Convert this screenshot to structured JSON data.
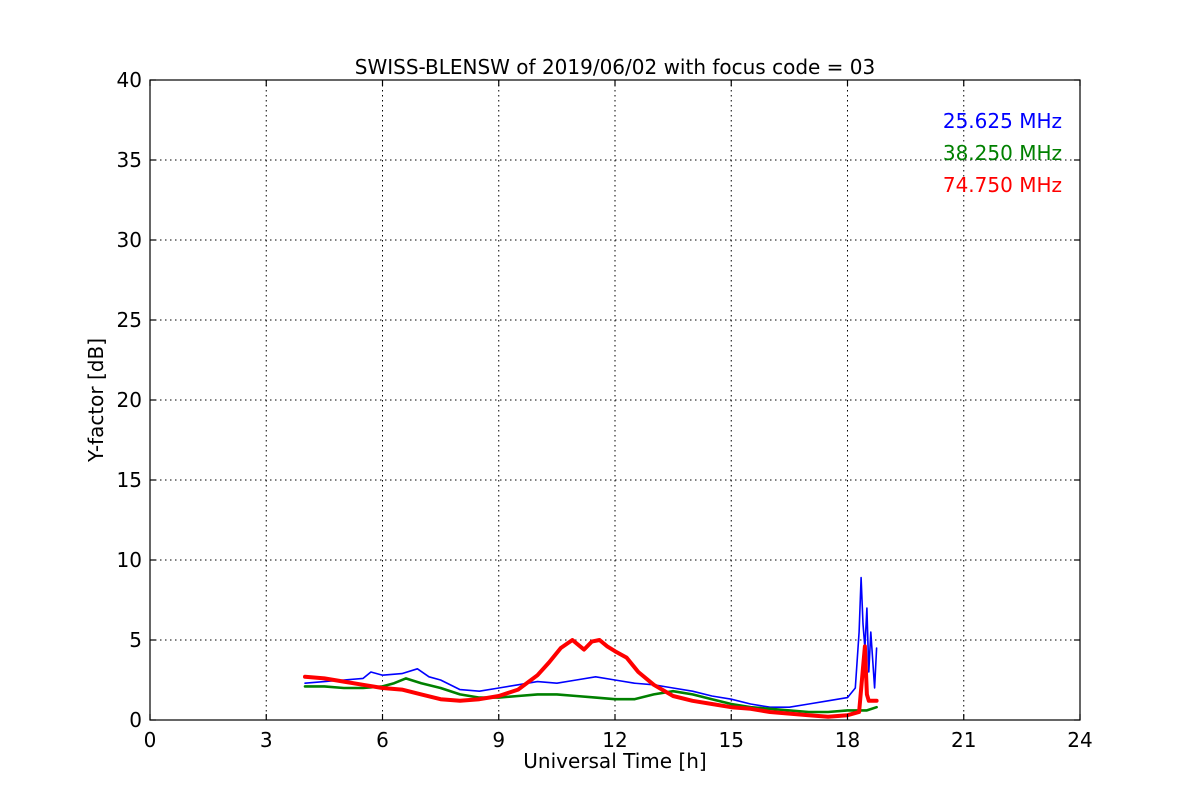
{
  "chart_data": {
    "type": "line",
    "title": "SWISS-BLENSW of 2019/06/02 with focus code = 03",
    "xlabel": "Universal Time [h]",
    "ylabel": "Y-factor [dB]",
    "xlim": [
      0,
      24
    ],
    "ylim": [
      0,
      40
    ],
    "xticks": [
      0,
      3,
      6,
      9,
      12,
      15,
      18,
      21,
      24
    ],
    "yticks": [
      0,
      5,
      10,
      15,
      20,
      25,
      30,
      35,
      40
    ],
    "xtick_labels": [
      "0",
      "3",
      "6",
      "9",
      "12",
      "15",
      "18",
      "21",
      "24"
    ],
    "ytick_labels": [
      "0",
      "5",
      "10",
      "15",
      "20",
      "25",
      "30",
      "35",
      "40"
    ],
    "grid": true,
    "legend_position": "top-right",
    "series": [
      {
        "name": "25.625 MHz",
        "color": "#0000ff",
        "x": [
          4.0,
          4.5,
          5.0,
          5.5,
          5.7,
          6.0,
          6.5,
          6.9,
          7.2,
          7.5,
          8.0,
          8.5,
          9.0,
          9.5,
          10.0,
          10.5,
          11.0,
          11.5,
          12.0,
          12.5,
          13.0,
          13.5,
          14.0,
          14.5,
          15.0,
          15.5,
          16.0,
          16.5,
          17.0,
          17.5,
          18.0,
          18.2,
          18.3,
          18.35,
          18.4,
          18.45,
          18.5,
          18.55,
          18.6,
          18.7,
          18.75
        ],
        "y": [
          2.3,
          2.4,
          2.5,
          2.6,
          3.0,
          2.8,
          2.9,
          3.2,
          2.7,
          2.5,
          1.9,
          1.8,
          2.0,
          2.2,
          2.4,
          2.3,
          2.5,
          2.7,
          2.5,
          2.3,
          2.2,
          2.0,
          1.8,
          1.5,
          1.3,
          1.0,
          0.8,
          0.8,
          1.0,
          1.2,
          1.4,
          2.0,
          5.5,
          8.9,
          6.0,
          4.5,
          7.0,
          3.0,
          5.5,
          2.0,
          4.5
        ]
      },
      {
        "name": "38.250 MHz",
        "color": "#008000",
        "x": [
          4.0,
          4.5,
          5.0,
          5.5,
          6.0,
          6.3,
          6.6,
          7.0,
          7.5,
          8.0,
          8.5,
          9.0,
          9.5,
          10.0,
          10.5,
          11.0,
          11.5,
          12.0,
          12.5,
          13.0,
          13.5,
          14.0,
          14.5,
          15.0,
          15.5,
          16.0,
          16.5,
          17.0,
          17.5,
          18.0,
          18.5,
          18.75
        ],
        "y": [
          2.1,
          2.1,
          2.0,
          2.0,
          2.1,
          2.3,
          2.6,
          2.3,
          2.0,
          1.6,
          1.4,
          1.4,
          1.5,
          1.6,
          1.6,
          1.5,
          1.4,
          1.3,
          1.3,
          1.6,
          1.8,
          1.6,
          1.3,
          1.0,
          0.8,
          0.7,
          0.6,
          0.5,
          0.5,
          0.6,
          0.6,
          0.8
        ]
      },
      {
        "name": "74.750 MHz",
        "color": "#ff0000",
        "x": [
          4.0,
          4.5,
          5.0,
          5.5,
          6.0,
          6.5,
          7.0,
          7.5,
          8.0,
          8.5,
          9.0,
          9.5,
          10.0,
          10.3,
          10.6,
          10.9,
          11.2,
          11.4,
          11.6,
          11.8,
          12.0,
          12.3,
          12.6,
          13.0,
          13.5,
          14.0,
          14.5,
          15.0,
          15.5,
          16.0,
          16.5,
          17.0,
          17.5,
          18.0,
          18.3,
          18.45,
          18.5,
          18.55,
          18.75
        ],
        "y": [
          2.7,
          2.6,
          2.4,
          2.2,
          2.0,
          1.9,
          1.6,
          1.3,
          1.2,
          1.3,
          1.5,
          1.9,
          2.8,
          3.6,
          4.5,
          5.0,
          4.4,
          4.9,
          5.0,
          4.6,
          4.3,
          3.9,
          3.0,
          2.2,
          1.5,
          1.2,
          1.0,
          0.8,
          0.7,
          0.5,
          0.4,
          0.3,
          0.2,
          0.3,
          0.5,
          4.6,
          1.6,
          1.2,
          1.2
        ]
      }
    ]
  }
}
